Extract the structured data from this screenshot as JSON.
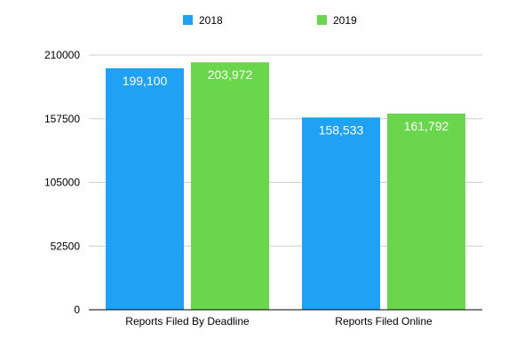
{
  "colors": {
    "series_2018": "#1fa2f5",
    "series_2019": "#6ad64b",
    "gridline": "#cfcfcf",
    "axis": "#000000",
    "background": "#ffffff"
  },
  "chart_data": {
    "type": "bar",
    "title": "",
    "xlabel": "",
    "ylabel": "",
    "categories": [
      "Reports Filed By Deadline",
      "Reports Filed Online"
    ],
    "series": [
      {
        "name": "2018",
        "values": [
          199100,
          158533
        ],
        "labels": [
          "199,100",
          "158,533"
        ]
      },
      {
        "name": "2019",
        "values": [
          203972,
          161792
        ],
        "labels": [
          "203,972",
          "161,792"
        ]
      }
    ],
    "ylim": [
      0,
      210000
    ],
    "yticks": [
      0,
      52500,
      105000,
      157500,
      210000
    ],
    "ytick_labels": [
      "0",
      "52500",
      "105000",
      "157500",
      "210000"
    ],
    "grid": true,
    "legend_position": "top-center",
    "data_labels": "inside-top"
  }
}
